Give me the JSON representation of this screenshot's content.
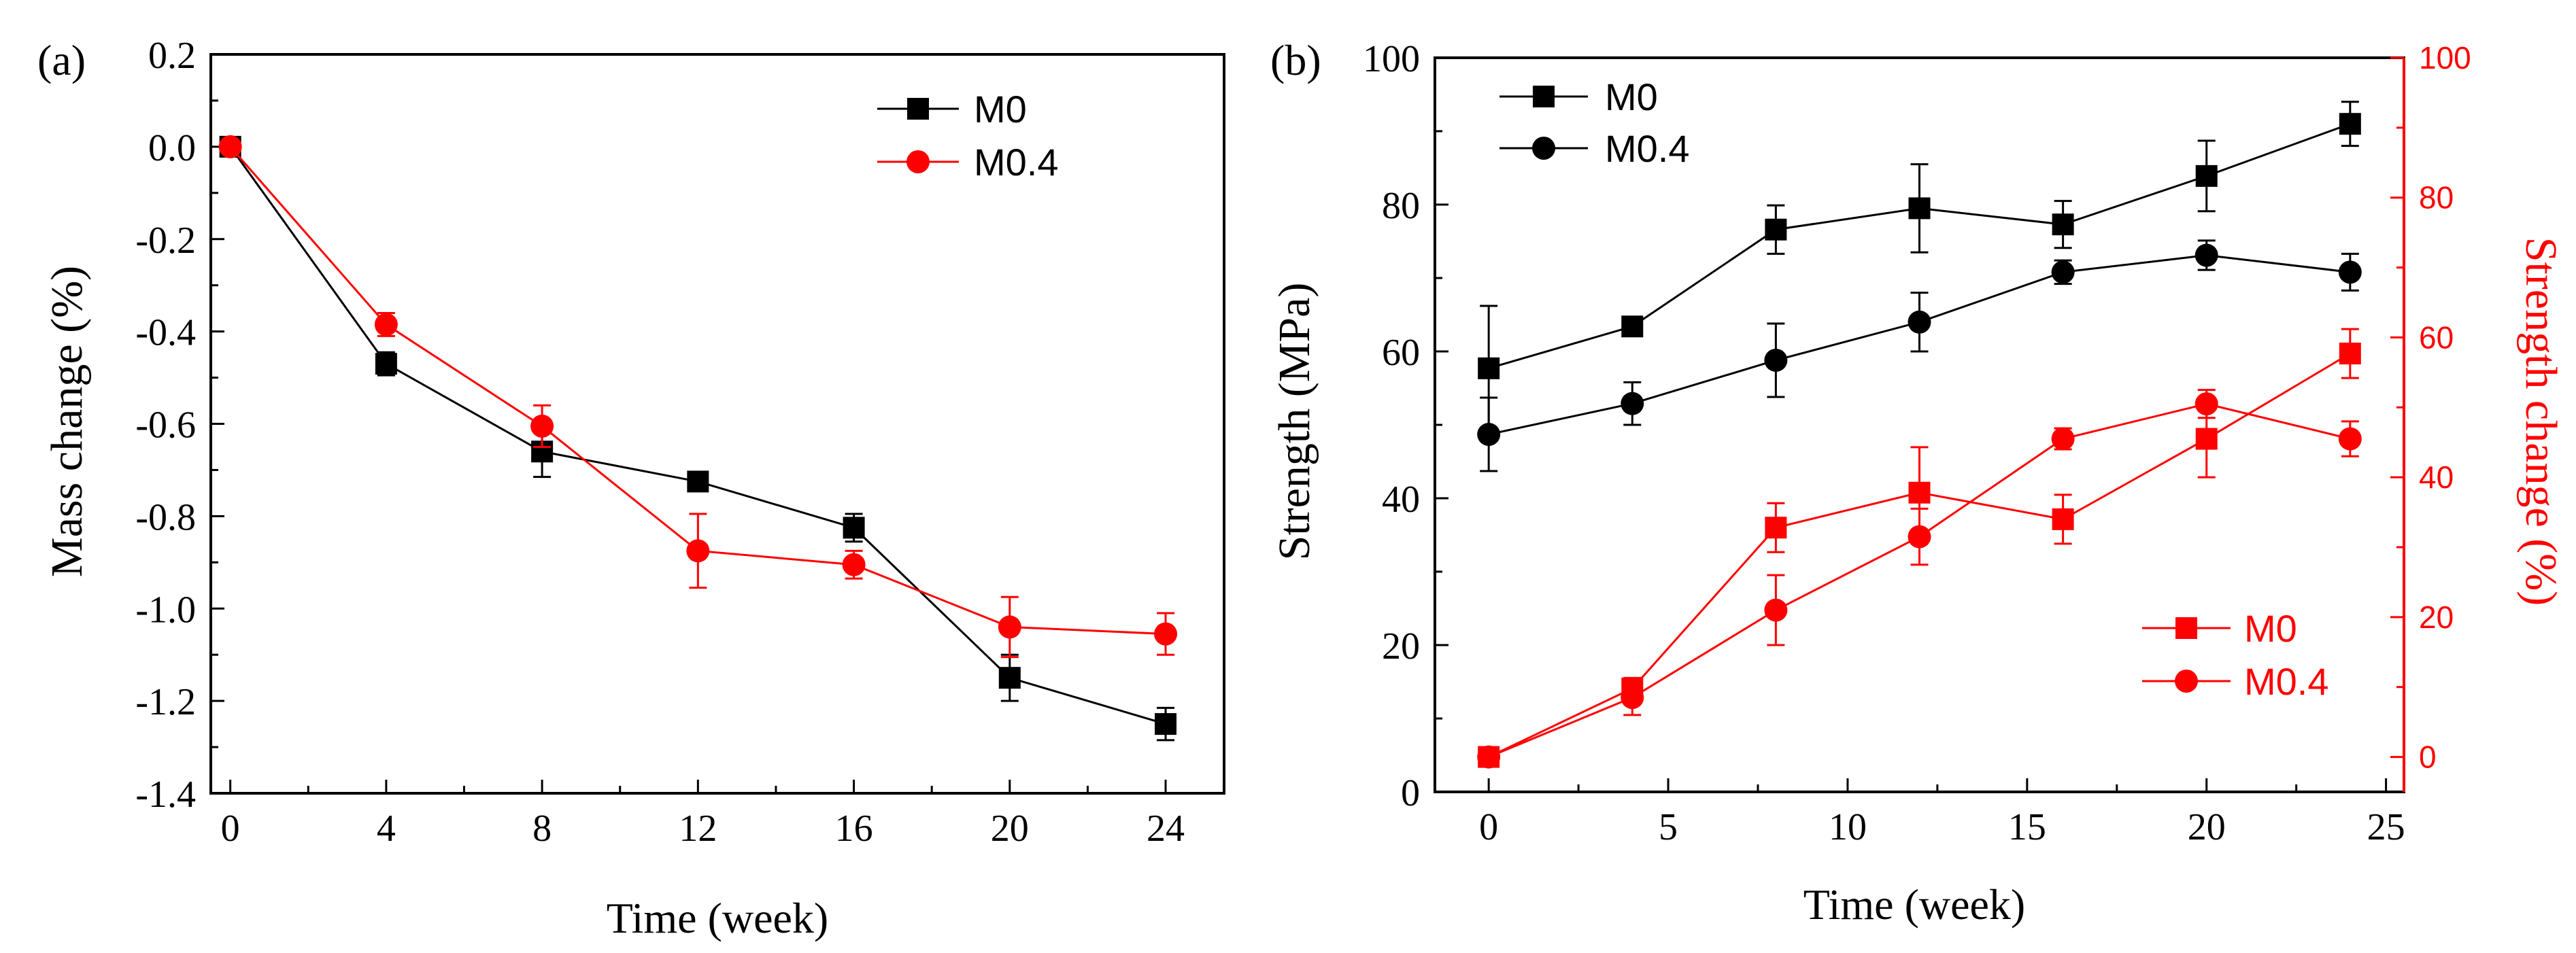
{
  "colors": {
    "black": "#000000",
    "red": "#ff0000"
  },
  "chart_data": [
    {
      "panel_label": "(a)",
      "type": "line",
      "title": "",
      "xlabel": "Time (week)",
      "ylabel": "Mass change (%)",
      "x": [
        0,
        4,
        8,
        12,
        16,
        20,
        24
      ],
      "xlim": [
        -0.5,
        25.5
      ],
      "ylim": [
        -1.4,
        0.2
      ],
      "xticks": [
        0,
        4,
        8,
        12,
        16,
        20,
        24
      ],
      "xtick_labels": [
        "0",
        "4",
        "8",
        "12",
        "16",
        "20",
        "24"
      ],
      "yticks": [
        0.2,
        0.0,
        -0.2,
        -0.4,
        -0.6,
        -0.8,
        -1.0,
        -1.2,
        -1.4
      ],
      "ytick_labels": [
        "0.2",
        "0.0",
        "-0.2",
        "-0.4",
        "-0.6",
        "-0.8",
        "-1.0",
        "-1.2",
        "-1.4"
      ],
      "grid": false,
      "legend_position": "top-right",
      "series": [
        {
          "name": "M0",
          "color": "#000000",
          "marker": "square",
          "axis": "left",
          "values": [
            0.0,
            -0.47,
            -0.66,
            -0.725,
            -0.825,
            -1.15,
            -1.25
          ],
          "errors": [
            0.0,
            0.025,
            0.055,
            0.02,
            0.03,
            0.05,
            0.035
          ]
        },
        {
          "name": "M0.4",
          "color": "#ff0000",
          "marker": "circle",
          "axis": "left",
          "values": [
            0.0,
            -0.385,
            -0.605,
            -0.875,
            -0.905,
            -1.04,
            -1.055
          ],
          "errors": [
            0.0,
            0.025,
            0.045,
            0.08,
            0.03,
            0.065,
            0.045
          ]
        }
      ]
    },
    {
      "panel_label": "(b)",
      "type": "line",
      "title": "",
      "xlabel": "Time (week)",
      "ylabel": "Strength (MPa)",
      "ylabel_right": "Strength change (%)",
      "x": [
        0,
        4,
        8,
        12,
        16,
        20,
        24
      ],
      "xlim": [
        -1.5,
        25.5
      ],
      "ylim": [
        0,
        100
      ],
      "ylim_right": [
        -5,
        100
      ],
      "xticks": [
        0,
        5,
        10,
        15,
        20,
        25
      ],
      "xtick_labels": [
        "0",
        "5",
        "10",
        "15",
        "20",
        "25"
      ],
      "yticks": [
        0,
        20,
        40,
        60,
        80,
        100
      ],
      "ytick_labels": [
        "0",
        "20",
        "40",
        "60",
        "80",
        "100"
      ],
      "yticks_right": [
        0,
        20,
        40,
        60,
        80,
        100
      ],
      "ytick_labels_right": [
        "0",
        "20",
        "40",
        "60",
        "80",
        "100"
      ],
      "grid": false,
      "legend_position": "top-left",
      "legend_right_position": "bottom-right",
      "series": [
        {
          "name": "M0",
          "color": "#000000",
          "marker": "square",
          "axis": "left",
          "values": [
            57.7,
            63.4,
            76.6,
            79.5,
            77.3,
            83.9,
            91.0
          ],
          "errors": [
            8.5,
            0.5,
            3.3,
            6.0,
            3.2,
            4.8,
            3.0
          ]
        },
        {
          "name": "M0.4",
          "color": "#000000",
          "marker": "circle",
          "axis": "left",
          "values": [
            48.7,
            52.9,
            58.8,
            64.0,
            70.8,
            73.1,
            70.8
          ],
          "errors": [
            5.0,
            2.9,
            5.0,
            4.0,
            1.6,
            2.0,
            2.5
          ]
        },
        {
          "name": "M0",
          "color": "#ff0000",
          "marker": "square",
          "axis": "right",
          "values": [
            0.0,
            9.8,
            32.8,
            37.8,
            34.0,
            45.5,
            57.7
          ],
          "errors": [
            1.0,
            1.5,
            3.5,
            6.5,
            3.5,
            5.5,
            3.5
          ]
        },
        {
          "name": "M0.4",
          "color": "#ff0000",
          "marker": "circle",
          "axis": "right",
          "values": [
            0.0,
            8.5,
            21.0,
            31.5,
            45.5,
            50.5,
            45.5
          ],
          "errors": [
            1.0,
            2.5,
            5.0,
            4.0,
            1.5,
            2.0,
            2.5
          ]
        }
      ]
    }
  ]
}
